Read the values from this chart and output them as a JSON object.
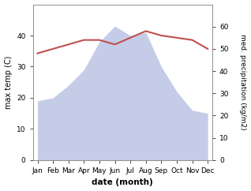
{
  "months": [
    "Jan",
    "Feb",
    "Mar",
    "Apr",
    "May",
    "Jun",
    "Jul",
    "Aug",
    "Sep",
    "Oct",
    "Nov",
    "Dec"
  ],
  "month_indices": [
    0,
    1,
    2,
    3,
    4,
    5,
    6,
    7,
    8,
    9,
    10,
    11
  ],
  "precipitation": [
    19,
    20,
    24,
    29,
    38,
    43,
    40,
    41,
    30,
    22,
    16,
    15
  ],
  "max_temp": [
    48,
    50,
    52,
    54,
    54,
    52,
    55,
    58,
    56,
    55,
    54,
    50
  ],
  "temp_color": "#c0504d",
  "precip_fill_color": "#c5cce8",
  "left_ylim": [
    0,
    50
  ],
  "right_ylim": [
    0,
    70
  ],
  "left_yticks": [
    0,
    10,
    20,
    30,
    40
  ],
  "right_yticks": [
    0,
    10,
    20,
    30,
    40,
    50,
    60
  ],
  "ylabel_left": "max temp (C)",
  "ylabel_right": "med. precipitation (kg/m2)",
  "xlabel": "date (month)",
  "figsize": [
    3.18,
    2.42
  ],
  "dpi": 100
}
